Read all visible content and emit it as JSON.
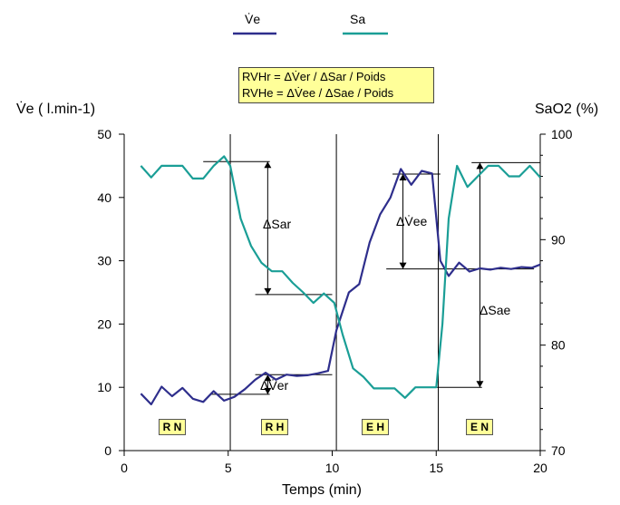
{
  "legend": {
    "ve_label": "V̇e",
    "sa_label": "Sa"
  },
  "formula": {
    "line1": "RVHr = ΔV̇er / ΔSar / Poids",
    "line2": "RVHe = ΔV̇ee / ΔSae / Poids"
  },
  "axes": {
    "x_title": "Temps (min)",
    "y_left_title": "V̇e ( l.min-1)",
    "y_right_title": "SaO2 (%)"
  },
  "phases": [
    "R N",
    "R H",
    "E H",
    "E N"
  ],
  "annotations": {
    "delta_sar": "ΔSar",
    "delta_ver": "ΔV̇er",
    "delta_vee": "ΔV̇ee",
    "delta_sae": "ΔSae"
  },
  "colors": {
    "ve": "#2e2e8c",
    "sa": "#1a9e96",
    "box_fill": "#ffff99"
  },
  "chart_data": {
    "type": "line",
    "xlabel": "Temps (min)",
    "ylabel": "V̇e ( l.min-1)",
    "ylabel_right": "SaO2 (%)",
    "xlim": [
      0,
      20
    ],
    "ylim": [
      0,
      50
    ],
    "ylim_right": [
      70,
      100
    ],
    "x_ticks": [
      0,
      5,
      10,
      15,
      20
    ],
    "y_ticks": [
      0,
      10,
      20,
      30,
      40,
      50
    ],
    "y_right_ticks": [
      70,
      80,
      90,
      100
    ],
    "phase_boundaries": [
      5.1,
      10.2,
      15.1
    ],
    "series": [
      {
        "name": "V̇e",
        "axis": "left",
        "x": [
          0.8,
          1.3,
          1.8,
          2.3,
          2.8,
          3.3,
          3.8,
          4.3,
          4.8,
          5.3,
          5.8,
          6.3,
          6.8,
          7.3,
          7.8,
          8.3,
          8.8,
          9.3,
          9.8,
          10.2,
          10.8,
          11.3,
          11.8,
          12.3,
          12.8,
          13.3,
          13.8,
          14.3,
          14.8,
          15.2,
          15.6,
          16.1,
          16.6,
          17.1,
          17.6,
          18.1,
          18.6,
          19.1,
          19.6,
          20.0
        ],
        "values": [
          9,
          7.3,
          10.1,
          8.6,
          9.9,
          8.2,
          7.7,
          9.4,
          7.9,
          8.5,
          9.7,
          11.2,
          12.3,
          11.2,
          12.0,
          11.8,
          11.9,
          12.2,
          12.6,
          19.0,
          25.0,
          26.3,
          32.9,
          37.3,
          40.0,
          44.5,
          42.0,
          44.2,
          43.8,
          30.0,
          27.6,
          29.7,
          28.3,
          28.8,
          28.6,
          28.9,
          28.7,
          29.0,
          28.9,
          29.4
        ]
      },
      {
        "name": "Sa",
        "axis": "right",
        "x": [
          0.8,
          1.3,
          1.8,
          2.3,
          2.8,
          3.3,
          3.8,
          4.3,
          4.8,
          5.1,
          5.6,
          6.1,
          6.6,
          7.1,
          7.6,
          8.1,
          8.6,
          9.1,
          9.6,
          10.1,
          10.5,
          11.0,
          11.5,
          12.0,
          12.5,
          13.0,
          13.5,
          14.0,
          14.5,
          15.0,
          15.3,
          15.6,
          16.0,
          16.5,
          17.0,
          17.5,
          18.0,
          18.5,
          19.0,
          19.5,
          20.0
        ],
        "values": [
          97.0,
          95.9,
          97.0,
          97.0,
          97.0,
          95.8,
          95.8,
          97.0,
          97.9,
          97.0,
          92.0,
          89.4,
          87.8,
          87.0,
          87.0,
          85.9,
          85.0,
          84.0,
          84.9,
          84.0,
          81.0,
          77.8,
          77.0,
          75.9,
          75.9,
          75.9,
          75.0,
          76.0,
          76.0,
          76.0,
          82.0,
          92.0,
          97.0,
          95.0,
          96.0,
          97.0,
          97.0,
          96.0,
          96.0,
          97.0,
          95.9
        ]
      }
    ]
  }
}
